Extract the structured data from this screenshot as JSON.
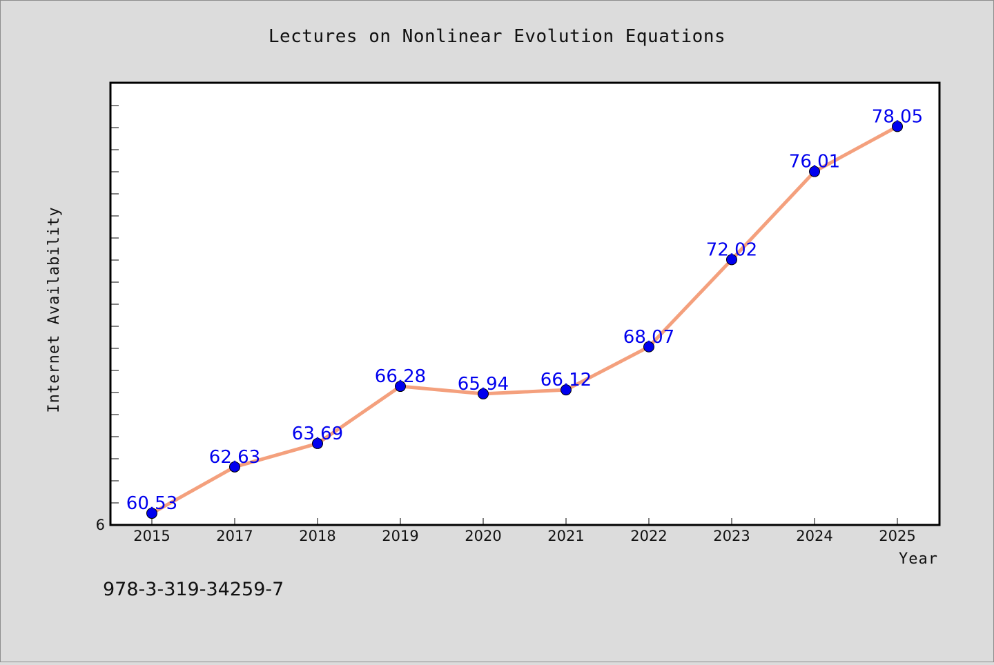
{
  "chart_data": {
    "type": "line",
    "title": "Lectures on Nonlinear Evolution Equations",
    "xlabel": "Year",
    "ylabel": "Internet Availability",
    "categories": [
      "2015",
      "2017",
      "2018",
      "2019",
      "2020",
      "2021",
      "2022",
      "2023",
      "2024",
      "2025"
    ],
    "series": [
      {
        "values": [
          60.53,
          62.63,
          63.69,
          66.28,
          65.94,
          66.12,
          68.07,
          72.02,
          76.01,
          78.05
        ],
        "labels": [
          "60.53",
          "62.63",
          "63.69",
          "66.28",
          "65.94",
          "66.12",
          "68.07",
          "72.02",
          "76.01",
          "78.05"
        ]
      }
    ],
    "ylim": [
      60,
      80
    ],
    "y_tick_label": "6",
    "grid": false,
    "legend": "none",
    "colors": {
      "line": "#f4a07d",
      "marker": "#0000ee",
      "label": "#0000ee",
      "plot_background": "#ffffff",
      "page_background": "#dcdcdc"
    }
  },
  "footer": {
    "isbn": "978-3-319-34259-7"
  }
}
